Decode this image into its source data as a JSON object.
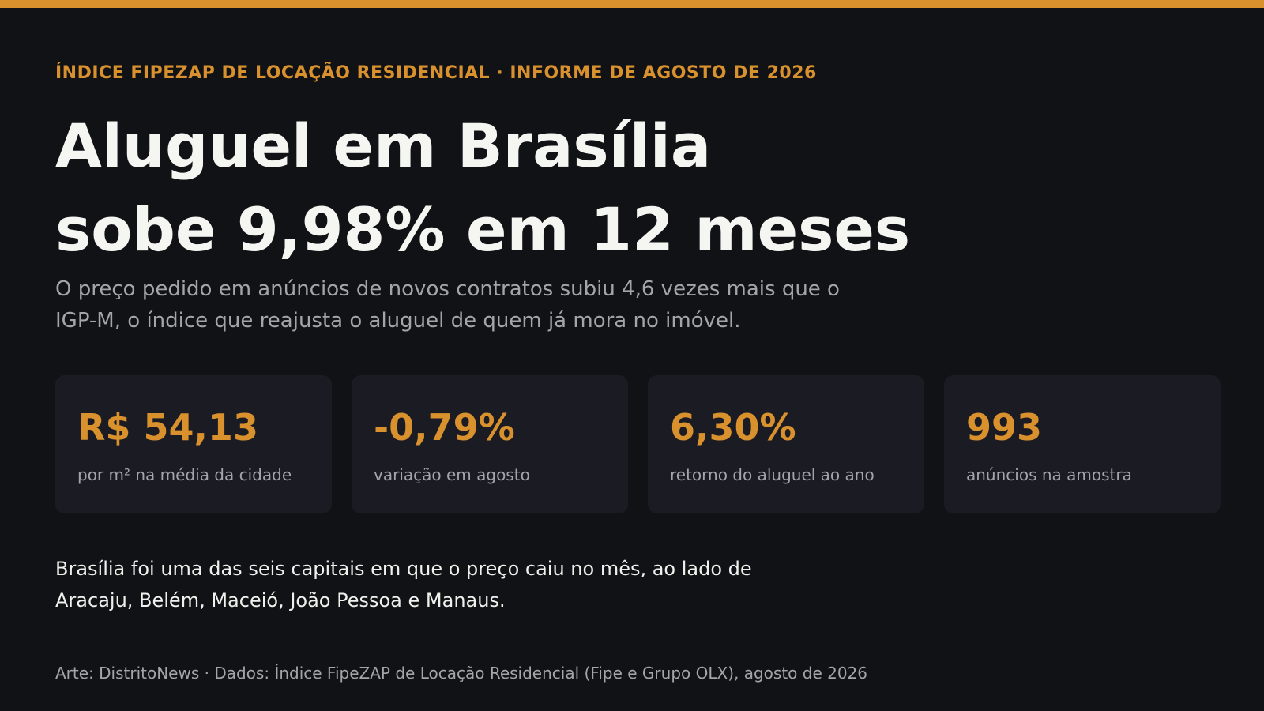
{
  "kicker": "ÍNDICE FIPEZAP DE LOCAÇÃO RESIDENCIAL · INFORME DE AGOSTO DE 2026",
  "headline": {
    "line1": "Aluguel em Brasília",
    "line2": "sobe 9,98% em 12 meses"
  },
  "dek": {
    "line1": "O preço pedido em anúncios de novos contratos subiu 4,6 vezes mais que o",
    "line2": "IGP-M, o índice que reajusta o aluguel de quem já mora no imóvel."
  },
  "stats": [
    {
      "value": "R$ 54,13",
      "label": "por m² na média da cidade"
    },
    {
      "value": "-0,79%",
      "label": "variação em agosto"
    },
    {
      "value": "6,30%",
      "label": "retorno do aluguel ao ano"
    },
    {
      "value": "993",
      "label": "anúncios na amostra"
    }
  ],
  "note": {
    "line1": "Brasília foi uma das seis capitais em que o preço caiu no mês, ao lado de",
    "line2": "Aracaju, Belém, Maceió, João Pessoa e Manaus."
  },
  "credit": "Arte: DistritoNews · Dados: Índice FipeZAP de Locação Residencial (Fipe e Grupo OLX), agosto de 2026",
  "colors": {
    "accent": "#d9912e",
    "background": "#111216",
    "card": "#1b1c23"
  }
}
